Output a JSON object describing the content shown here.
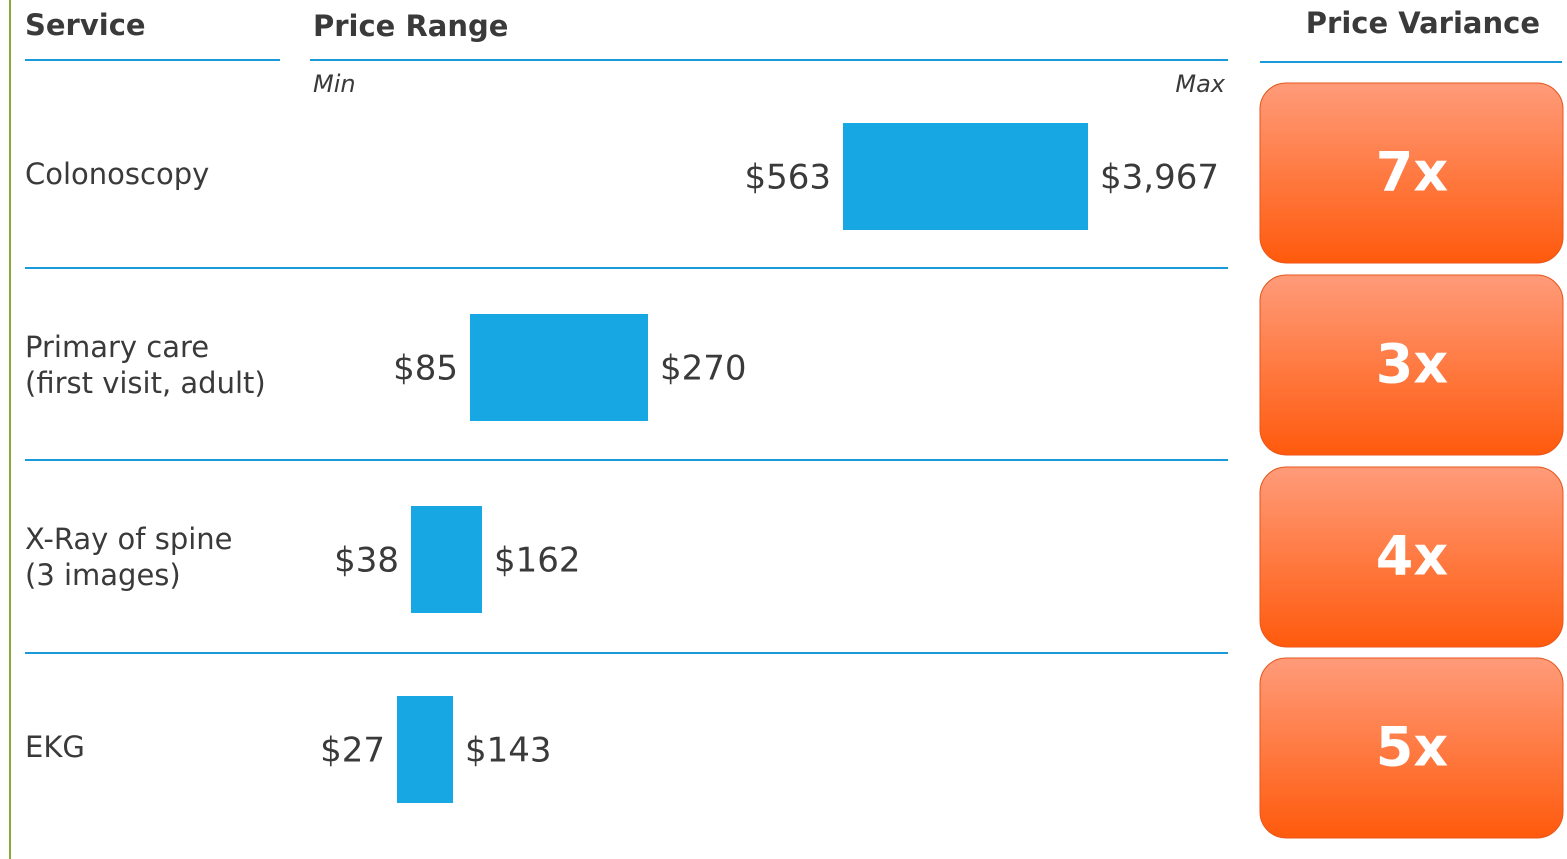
{
  "header": {
    "service": "Service",
    "price_range": "Price Range",
    "price_variance": "Price Variance",
    "min": "Min",
    "max": "Max"
  },
  "rows": [
    {
      "service": [
        "Colonoscopy"
      ],
      "min": "$563",
      "max": "$3,967",
      "variance": "7x"
    },
    {
      "service": [
        "Primary care",
        "(first visit, adult)"
      ],
      "min": "$85",
      "max": "$270",
      "variance": "3x"
    },
    {
      "service": [
        "X-Ray of spine",
        "(3 images)"
      ],
      "min": "$38",
      "max": "$162",
      "variance": "4x"
    },
    {
      "service": [
        "EKG"
      ],
      "min": "$27",
      "max": "$143",
      "variance": "5x"
    }
  ]
}
